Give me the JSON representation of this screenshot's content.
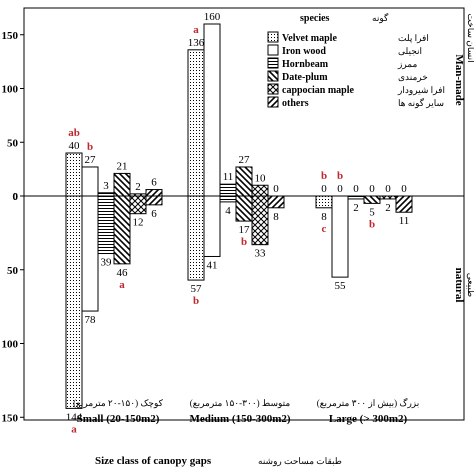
{
  "chart_data": {
    "type": "bar",
    "categories": [
      "Small (20-150m2)",
      "Medium (150-300m2)",
      "Large (> 300m2)"
    ],
    "categories_fa": [
      "کوچک (۱۵۰-۲۰ مترمربع)",
      "متوسط (۳۰۰-۱۵۰ مترمربع)",
      "بزرگ (بیش از ۳۰۰ مترمربع)"
    ],
    "xlabel": "Size class of canopy gaps",
    "xlabel_fa": "طبقات مساحت روشنه",
    "top_label": "Man-made",
    "top_label_fa": "انسان ساخت",
    "bottom_label": "natural",
    "bottom_label_fa": "طبیعی",
    "legend_title": "species",
    "legend_title_fa": "گونه",
    "ylim_top": [
      0,
      160
    ],
    "ylim_bottom": [
      0,
      160
    ],
    "yticks_top": [
      "0",
      "50",
      "100",
      "150"
    ],
    "yticks_bottom": [
      "0",
      "50",
      "100",
      "150"
    ],
    "series": [
      {
        "name": "Velvet maple",
        "name_fa": "افرا پلت",
        "pattern": "dots",
        "top": [
          40,
          136,
          0
        ],
        "bottom": [
          144,
          57,
          8
        ],
        "top_letters": [
          "ab",
          "a",
          "b"
        ],
        "bottom_letters": [
          "a",
          "b",
          "c"
        ]
      },
      {
        "name": "Iron wood",
        "name_fa": "انجیلی",
        "pattern": "white",
        "top": [
          27,
          160,
          0
        ],
        "bottom": [
          78,
          41,
          55
        ],
        "top_letters": [
          "b",
          "",
          "b"
        ],
        "bottom_letters": [
          "",
          "",
          ""
        ]
      },
      {
        "name": "Hornbeam",
        "name_fa": "ممرز",
        "pattern": "hlines",
        "top": [
          3,
          11,
          0
        ],
        "bottom": [
          39,
          4,
          2
        ],
        "top_letters": [
          "",
          "",
          ""
        ],
        "bottom_letters": [
          "",
          "",
          ""
        ]
      },
      {
        "name": "Date-plum",
        "name_fa": "خرمندی",
        "pattern": "backslash",
        "top": [
          21,
          27,
          0
        ],
        "bottom": [
          46,
          17,
          5
        ],
        "top_letters": [
          "",
          "",
          ""
        ],
        "bottom_letters": [
          "a",
          "b",
          "b"
        ]
      },
      {
        "name": "cappocian maple",
        "name_fa": "افرا شیرودار",
        "pattern": "diamond",
        "top": [
          2,
          10,
          0
        ],
        "bottom": [
          12,
          33,
          2
        ],
        "top_letters": [
          "",
          "",
          ""
        ],
        "bottom_letters": [
          "",
          "",
          ""
        ]
      },
      {
        "name": "others",
        "name_fa": "سایر گونه ها",
        "pattern": "slash",
        "top": [
          6,
          0,
          0
        ],
        "bottom": [
          6,
          8,
          11
        ],
        "top_letters": [
          "",
          "",
          ""
        ],
        "bottom_letters": [
          "",
          "",
          ""
        ]
      }
    ]
  }
}
